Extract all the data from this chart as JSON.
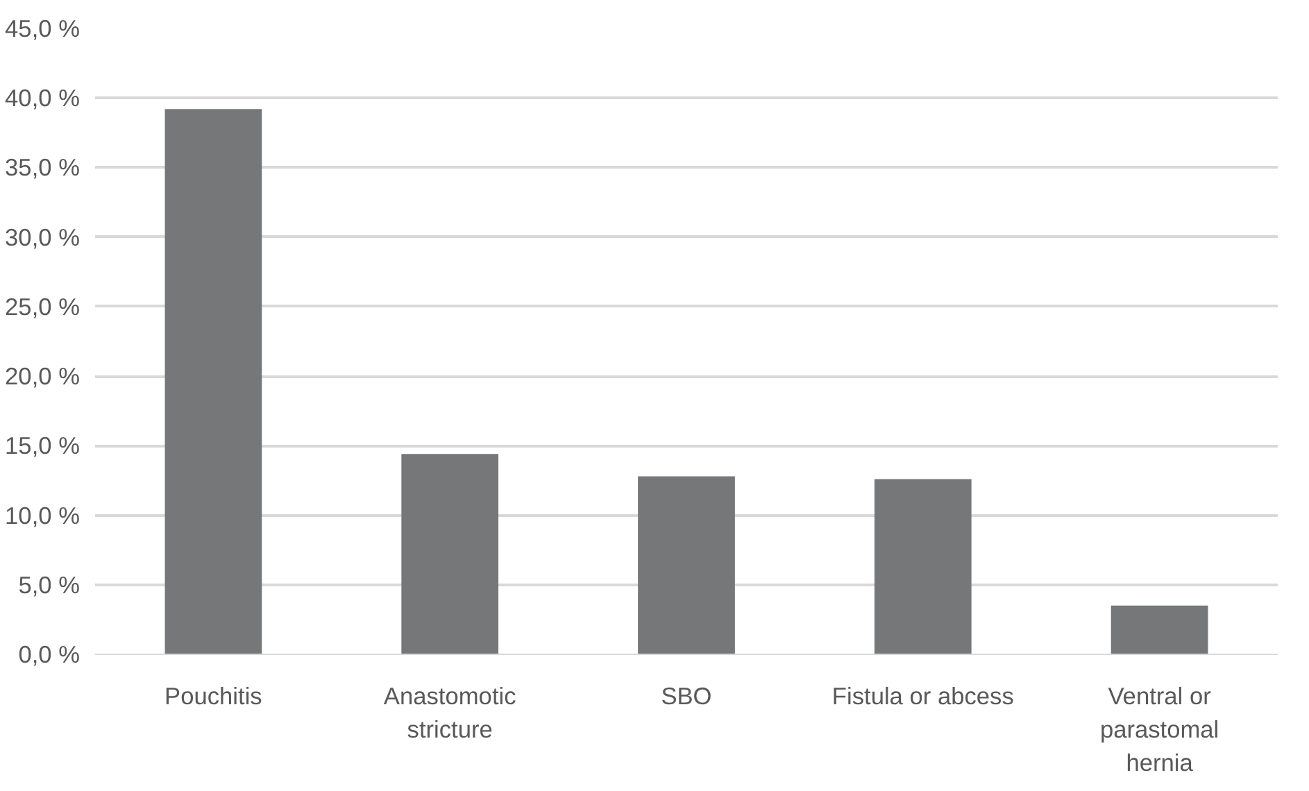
{
  "chart_data": {
    "type": "bar",
    "categories": [
      "Pouchitis",
      "Anastomotic\nstricture",
      "SBO",
      "Fistula or abcess",
      "Ventral or\nparastomal\nhernia"
    ],
    "values": [
      39.2,
      14.4,
      12.8,
      12.6,
      3.5
    ],
    "color": "#767779",
    "ylim": [
      0,
      45
    ],
    "yticks": [
      {
        "value": 0,
        "label": "0,0 %"
      },
      {
        "value": 5,
        "label": "5,0 %"
      },
      {
        "value": 10,
        "label": "10,0 %"
      },
      {
        "value": 15,
        "label": "15,0 %"
      },
      {
        "value": 20,
        "label": "20,0 %"
      },
      {
        "value": 25,
        "label": "25,0 %"
      },
      {
        "value": 30,
        "label": "30,0 %"
      },
      {
        "value": 35,
        "label": "35,0 %"
      },
      {
        "value": 40,
        "label": "40,0 %"
      },
      {
        "value": 45,
        "label": "45,0 %"
      }
    ],
    "grid": "y"
  }
}
